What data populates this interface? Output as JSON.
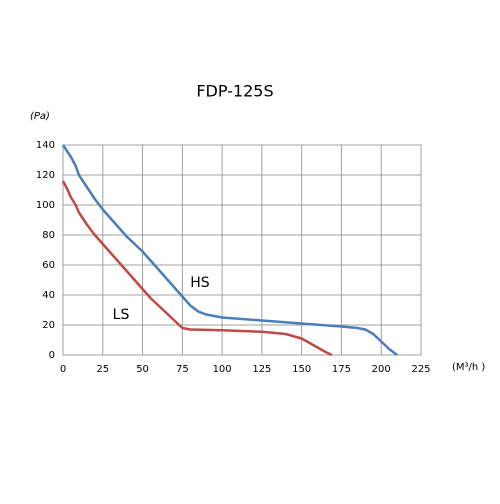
{
  "chart_data": {
    "type": "line",
    "title": "FDP-125S",
    "ylabel": "(Pa)",
    "xlabel": "(M³/h )",
    "xlim": [
      0,
      225
    ],
    "xticks": [
      0,
      25,
      50,
      75,
      100,
      125,
      150,
      175,
      200,
      225
    ],
    "ylim": [
      0,
      140
    ],
    "yticks": [
      0,
      20,
      40,
      60,
      80,
      100,
      120,
      140
    ],
    "grid": true,
    "series": [
      {
        "name": "HS",
        "color": "#4a7ebb",
        "x": [
          0,
          5,
          8,
          10,
          15,
          20,
          25,
          30,
          35,
          40,
          45,
          50,
          55,
          60,
          65,
          70,
          75,
          80,
          85,
          90,
          100,
          125,
          150,
          175,
          185,
          190,
          195,
          200,
          205,
          210
        ],
        "values": [
          140,
          132,
          126,
          120,
          112,
          104,
          97,
          91,
          85,
          79,
          74,
          69,
          63,
          57,
          51,
          45,
          39,
          33,
          29,
          27,
          25,
          23,
          21,
          19,
          18,
          17,
          14,
          9,
          4,
          0
        ]
      },
      {
        "name": "LS",
        "color": "#be4b48",
        "x": [
          0,
          3,
          5,
          8,
          10,
          15,
          20,
          25,
          30,
          35,
          40,
          45,
          50,
          55,
          60,
          65,
          70,
          75,
          80,
          100,
          125,
          140,
          150,
          155,
          160,
          165,
          169
        ],
        "values": [
          116,
          110,
          105,
          100,
          95,
          87,
          80,
          74,
          68,
          62,
          56,
          50,
          44,
          38,
          33,
          28,
          23,
          18,
          17,
          16.5,
          15.5,
          14,
          11,
          8,
          5,
          2,
          0
        ]
      }
    ]
  }
}
